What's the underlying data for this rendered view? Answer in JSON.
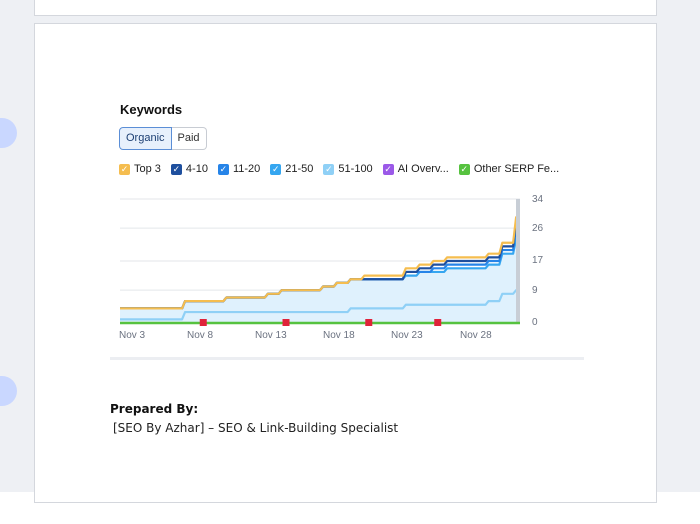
{
  "section": {
    "title": "Keywords",
    "tabs": [
      "Organic",
      "Paid"
    ],
    "active_tab": "Organic"
  },
  "legend": [
    {
      "label": "Top 3",
      "color": "#f5bd4f"
    },
    {
      "label": "4-10",
      "color": "#1e4f9e"
    },
    {
      "label": "11-20",
      "color": "#2684e8"
    },
    {
      "label": "21-50",
      "color": "#35a6f0"
    },
    {
      "label": "51-100",
      "color": "#8fd0f6"
    },
    {
      "label": "AI Overv...",
      "color": "#9b59e8"
    },
    {
      "label": "Other SERP Fe...",
      "color": "#56c23f"
    }
  ],
  "chart_data": {
    "type": "area",
    "x": [
      "Nov 1",
      "Nov 2",
      "Nov 3",
      "Nov 4",
      "Nov 5",
      "Nov 6",
      "Nov 7",
      "Nov 8",
      "Nov 9",
      "Nov 10",
      "Nov 11",
      "Nov 12",
      "Nov 13",
      "Nov 14",
      "Nov 15",
      "Nov 16",
      "Nov 17",
      "Nov 18",
      "Nov 19",
      "Nov 20",
      "Nov 21",
      "Nov 22",
      "Nov 23",
      "Nov 24",
      "Nov 25",
      "Nov 26",
      "Nov 27",
      "Nov 28",
      "Nov 29",
      "Nov 30"
    ],
    "x_tick_labels": [
      "Nov 3",
      "Nov 8",
      "Nov 13",
      "Nov 18",
      "Nov 23",
      "Nov 28"
    ],
    "y_ticks": [
      0,
      9,
      17,
      26,
      34
    ],
    "ylim": [
      0,
      34
    ],
    "series": [
      {
        "name": "Top 3",
        "values": [
          4,
          4,
          4,
          4,
          4,
          6,
          6,
          6,
          7,
          7,
          7,
          8,
          9,
          9,
          9,
          10,
          11,
          12,
          13,
          13,
          13,
          15,
          16,
          17,
          18,
          18,
          18,
          19,
          22,
          29
        ]
      },
      {
        "name": "4-10",
        "values": [
          4,
          4,
          4,
          4,
          4,
          6,
          6,
          6,
          7,
          7,
          7,
          8,
          9,
          9,
          9,
          10,
          11,
          12,
          12,
          12,
          12,
          14,
          15,
          16,
          17,
          17,
          17,
          18,
          21,
          28
        ]
      },
      {
        "name": "11-20",
        "values": [
          4,
          4,
          4,
          4,
          4,
          6,
          6,
          6,
          7,
          7,
          7,
          8,
          9,
          9,
          9,
          10,
          11,
          12,
          12,
          12,
          12,
          14,
          14,
          15,
          16,
          16,
          16,
          17,
          20,
          26
        ]
      },
      {
        "name": "21-50",
        "values": [
          4,
          4,
          4,
          4,
          4,
          6,
          6,
          6,
          7,
          7,
          7,
          8,
          9,
          9,
          9,
          10,
          11,
          12,
          12,
          12,
          12,
          13,
          14,
          14,
          15,
          15,
          15,
          16,
          19,
          23
        ]
      },
      {
        "name": "51-100",
        "values": [
          1,
          1,
          1,
          1,
          1,
          3,
          3,
          3,
          3,
          3,
          3,
          3,
          3,
          3,
          3,
          3,
          3,
          4,
          4,
          4,
          4,
          5,
          5,
          5,
          5,
          5,
          5,
          6,
          8,
          9
        ]
      }
    ],
    "baseline_series": {
      "name": "Other SERP Fe...",
      "color": "#56c23f"
    },
    "markers": [
      "Nov 7",
      "Nov 13",
      "Nov 19",
      "Nov 24"
    ],
    "grid": true
  },
  "footer": {
    "prepared_label": "Prepared By:",
    "author": "[SEO By Azhar] – SEO & Link-Building Specialist"
  }
}
